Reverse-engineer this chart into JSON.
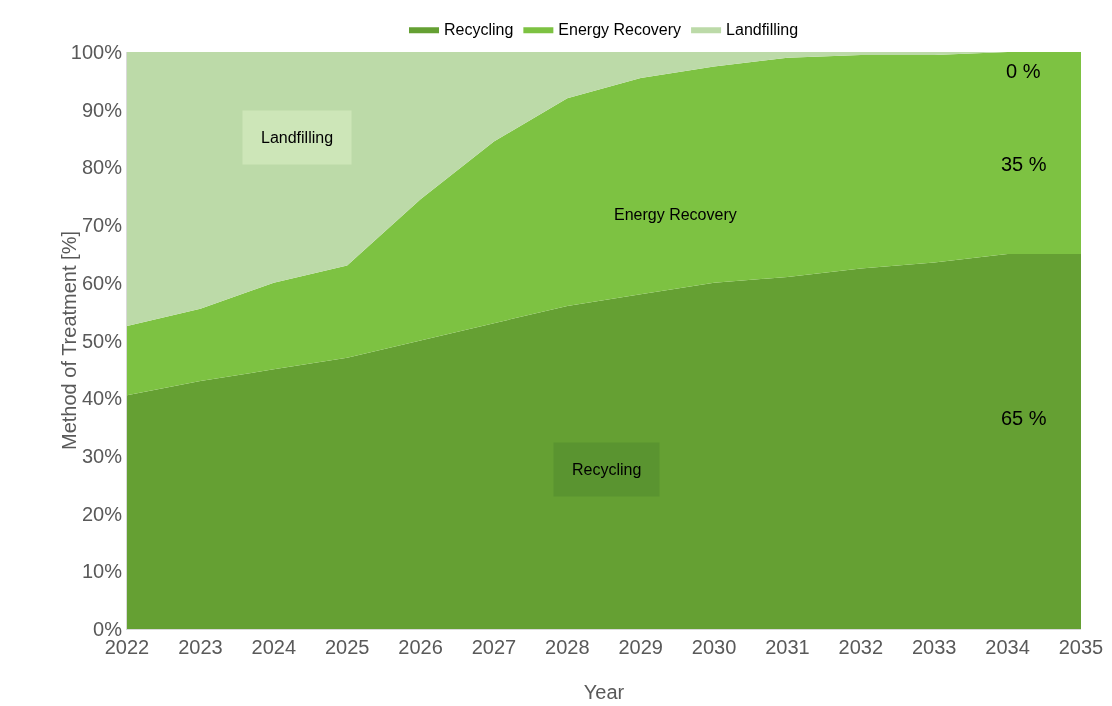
{
  "chart_data": {
    "type": "area",
    "stacked": true,
    "xlabel": "Year",
    "ylabel": "Method of Treatment [%]",
    "x": [
      2022,
      2023,
      2024,
      2025,
      2026,
      2027,
      2028,
      2029,
      2030,
      2031,
      2032,
      2033,
      2034,
      2035
    ],
    "series": [
      {
        "name": "Recycling",
        "color": "#65a033",
        "values": [
          40.5,
          43,
          45,
          47,
          50,
          53,
          56,
          58,
          60,
          61,
          62.5,
          63.5,
          65,
          65
        ]
      },
      {
        "name": "Energy Recovery",
        "color": "#7dc242",
        "values": [
          12,
          12.5,
          15,
          16,
          24.5,
          31.5,
          36,
          37.5,
          37.5,
          38,
          37,
          36,
          35,
          35
        ]
      },
      {
        "name": "Landfilling",
        "color": "#bcdaa8",
        "values": [
          47.5,
          44.5,
          40,
          37,
          25.5,
          15.5,
          8,
          4.5,
          2.5,
          1,
          0.5,
          0.5,
          0,
          0
        ]
      }
    ],
    "xlim": [
      2022,
      2035
    ],
    "xticks": [
      2022,
      2023,
      2024,
      2025,
      2026,
      2027,
      2028,
      2029,
      2030,
      2031,
      2032,
      2033,
      2034,
      2035
    ],
    "ylim": [
      0,
      100
    ],
    "yticks": [
      {
        "value": 0,
        "label": "0%"
      },
      {
        "value": 10,
        "label": "10%"
      },
      {
        "value": 20,
        "label": "20%"
      },
      {
        "value": 30,
        "label": "30%"
      },
      {
        "value": 40,
        "label": "40%"
      },
      {
        "value": 50,
        "label": "50%"
      },
      {
        "value": 60,
        "label": "60%"
      },
      {
        "value": 70,
        "label": "70%"
      },
      {
        "value": 80,
        "label": "80%"
      },
      {
        "value": 90,
        "label": "90%"
      },
      {
        "value": 100,
        "label": "100%"
      }
    ],
    "legend": "top",
    "annotations": [
      "Landfilling",
      "Energy Recovery",
      "Recycling",
      "0 %",
      "35 %",
      "65 %"
    ]
  }
}
